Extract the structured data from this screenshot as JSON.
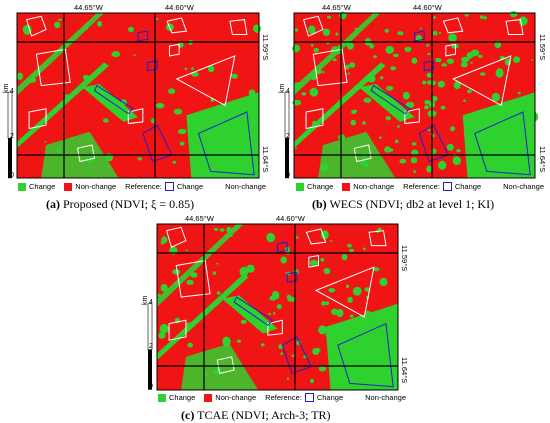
{
  "panels": [
    {
      "id": "a",
      "coords": {
        "top_left": "44.65°W",
        "top_right": "44.60°W",
        "right_top": "11.59°S",
        "right_bottom": "11.64°S"
      },
      "scale": {
        "label": "km",
        "ticks": [
          "4",
          "2",
          "0"
        ]
      },
      "legend": {
        "change": "Change",
        "non_change": "Non-change",
        "reference": "Reference:",
        "ref_change": "Change",
        "ref_non_change": "Non-change"
      },
      "caption": {
        "letter": "(a)",
        "text": " Proposed (NDVI; ξ = 0.85)"
      }
    },
    {
      "id": "b",
      "coords": {
        "top_left": "44.65°W",
        "top_right": "44.60°W",
        "right_top": "11.59°S",
        "right_bottom": "11.64°S"
      },
      "scale": {
        "label": "km",
        "ticks": [
          "4",
          "2",
          "0"
        ]
      },
      "legend": {
        "change": "Change",
        "non_change": "Non-change",
        "reference": "Reference:",
        "ref_change": "Change",
        "ref_non_change": "Non-change"
      },
      "caption": {
        "letter": "(b)",
        "text": " WECS (NDVI; db2 at level 1; KI)"
      }
    },
    {
      "id": "c",
      "coords": {
        "top_left": "44.65°W",
        "top_right": "44.60°W",
        "right_top": "11.59°S",
        "right_bottom": "11.64°S"
      },
      "scale": {
        "label": "km",
        "ticks": [
          "4",
          "2",
          "0"
        ]
      },
      "legend": {
        "change": "Change",
        "non_change": "Non-change",
        "reference": "Reference:",
        "ref_change": "Change",
        "ref_non_change": "Non-change"
      },
      "caption": {
        "letter": "(c)",
        "text": " TCAE (NDVI; Arch-3; TR)"
      }
    }
  ],
  "colors": {
    "change": "#2fd12f",
    "non_change": "#f01414",
    "reference_outline": "#2020d0",
    "grid": "#000000",
    "polygon_outline": "#ffffff"
  }
}
